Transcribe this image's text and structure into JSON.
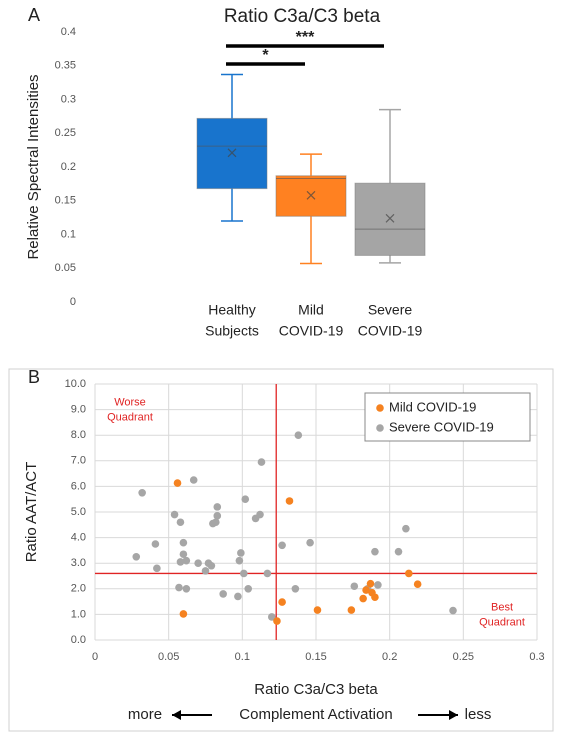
{
  "chart_data": [
    {
      "type": "box",
      "panel_label": "A",
      "title": "Ratio C3a/C3 beta",
      "y_label": "Relative Spectral Intensities",
      "categories": [
        "Healthy Subjects",
        "Mild COVID-19",
        "Severe COVID-19"
      ],
      "boxes": [
        {
          "color": "#1874cd",
          "min": 0.12,
          "q1": 0.168,
          "median": 0.231,
          "q3": 0.272,
          "max": 0.337,
          "mean": 0.221
        },
        {
          "color": "#ff8121",
          "min": 0.057,
          "q1": 0.127,
          "median": 0.183,
          "q3": 0.187,
          "max": 0.219,
          "mean": 0.158
        },
        {
          "color": "#a5a5a5",
          "min": 0.058,
          "q1": 0.069,
          "median": 0.108,
          "q3": 0.176,
          "max": 0.285,
          "mean": 0.124
        }
      ],
      "annotations": [
        "***",
        "*"
      ],
      "ylim": [
        0,
        0.4
      ],
      "yticks": [
        0,
        0.05,
        0.1,
        0.15,
        0.2,
        0.25,
        0.3,
        0.35,
        0.4
      ],
      "grid": false
    },
    {
      "type": "scatter",
      "panel_label": "B",
      "x_label": "Ratio C3a/C3 beta",
      "y_label": "Ratio AAT/ACT",
      "x_axis_note": [
        "more",
        "Complement Activation",
        "less"
      ],
      "quadrant_labels": [
        "Worse Quadrant",
        "Best Quadrant"
      ],
      "reference_lines": {
        "x": 0.123,
        "y": 2.6,
        "color": "#e02424"
      },
      "series": [
        {
          "name": "Mild COVID-19",
          "color": "#f58220",
          "x": [
            0.056,
            0.06,
            0.132,
            0.127,
            0.1235,
            0.151,
            0.174,
            0.182,
            0.184,
            0.187,
            0.188,
            0.19,
            0.213,
            0.219
          ],
          "values": [
            6.13,
            1.02,
            5.43,
            1.48,
            0.74,
            1.17,
            1.17,
            1.62,
            1.95,
            2.2,
            1.85,
            1.67,
            2.6,
            2.18
          ]
        },
        {
          "name": "Severe COVID-19",
          "color": "#a6a6a6",
          "x": [
            0.028,
            0.032,
            0.041,
            0.042,
            0.054,
            0.057,
            0.058,
            0.058,
            0.06,
            0.06,
            0.062,
            0.062,
            0.067,
            0.07,
            0.075,
            0.077,
            0.079,
            0.08,
            0.082,
            0.083,
            0.083,
            0.087,
            0.097,
            0.098,
            0.099,
            0.101,
            0.102,
            0.104,
            0.109,
            0.112,
            0.113,
            0.117,
            0.12,
            0.127,
            0.136,
            0.138,
            0.146,
            0.176,
            0.185,
            0.19,
            0.192,
            0.206,
            0.211,
            0.243
          ],
          "values": [
            3.25,
            5.75,
            3.75,
            2.8,
            4.9,
            2.05,
            4.6,
            3.05,
            3.35,
            3.8,
            2.0,
            3.1,
            6.25,
            3.0,
            2.7,
            3.0,
            2.9,
            4.55,
            4.6,
            5.2,
            4.85,
            1.8,
            1.7,
            3.1,
            3.4,
            2.6,
            5.5,
            2.0,
            4.75,
            4.9,
            6.95,
            2.6,
            0.9,
            3.7,
            2.0,
            8.0,
            3.8,
            2.1,
            2.0,
            3.45,
            2.15,
            3.45,
            4.35,
            1.15
          ]
        }
      ],
      "legend": "upper right",
      "xlim": [
        0,
        0.3
      ],
      "xticks": [
        0,
        0.05,
        0.1,
        0.15,
        0.2,
        0.25,
        0.3
      ],
      "ylim": [
        0,
        10
      ],
      "yticks": [
        {
          "value": 0,
          "label": "0.0"
        },
        {
          "value": 1,
          "label": "1.0"
        },
        {
          "value": 2,
          "label": "2.0"
        },
        {
          "value": 3,
          "label": "3.0"
        },
        {
          "value": 4,
          "label": "4.0"
        },
        {
          "value": 5,
          "label": "5.0"
        },
        {
          "value": 6,
          "label": "6.0"
        },
        {
          "value": 7,
          "label": "7.0"
        },
        {
          "value": 8,
          "label": "8.0"
        },
        {
          "value": 9,
          "label": "9.0"
        },
        {
          "value": 10,
          "label": "10.0"
        }
      ],
      "grid": true
    }
  ]
}
